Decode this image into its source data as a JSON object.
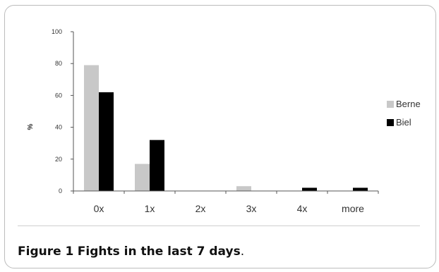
{
  "chart_data": {
    "type": "bar",
    "categories": [
      "0x",
      "1x",
      "2x",
      "3x",
      "4x",
      "more"
    ],
    "series": [
      {
        "name": "Berne",
        "color": "#c8c8c8",
        "values": [
          79,
          17,
          0,
          3,
          0,
          0
        ]
      },
      {
        "name": "Biel",
        "color": "#000000",
        "values": [
          62,
          32,
          0,
          0,
          2,
          2
        ]
      }
    ],
    "ylabel": "%",
    "ylim": [
      0,
      100
    ],
    "yticks": [
      0,
      20,
      40,
      60,
      80,
      100
    ],
    "grid": false,
    "legend": "right"
  },
  "caption": {
    "label": "Figure 1",
    "text": "Fights in the last 7 days",
    "suffix": "."
  }
}
